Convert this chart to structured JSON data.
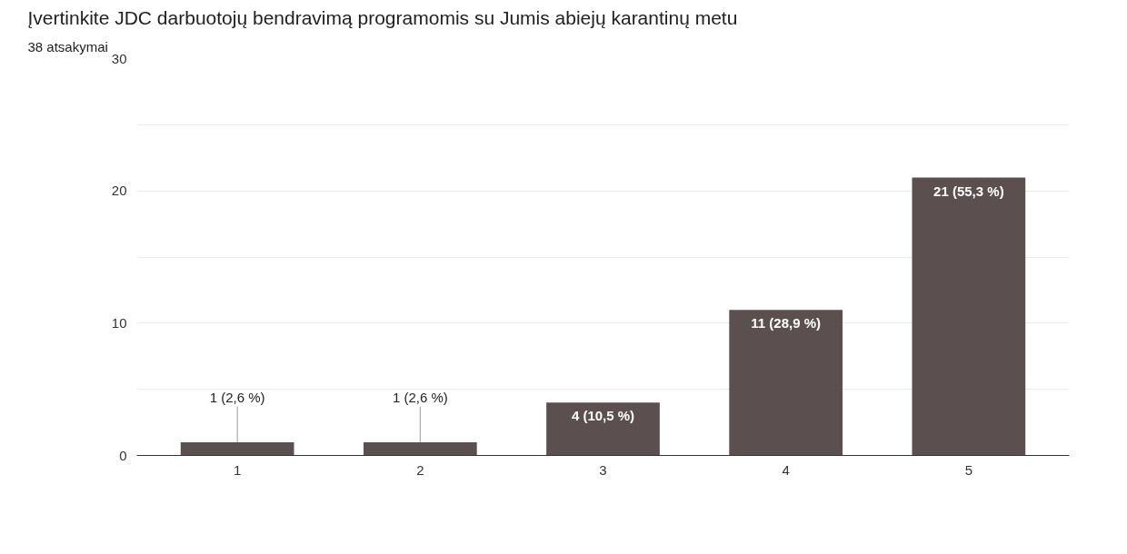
{
  "chart_data": {
    "type": "bar",
    "title": "Įvertinkite JDC darbuotojų bendravimą programomis su Jumis abiejų karantinų metu",
    "subtitle": "38 atsakymai",
    "categories": [
      "1",
      "2",
      "3",
      "4",
      "5"
    ],
    "values": [
      1,
      1,
      4,
      11,
      21
    ],
    "value_labels": [
      "1 (2,6 %)",
      "1 (2,6 %)",
      "4 (10,5 %)",
      "11 (28,9 %)",
      "21 (55,3 %)"
    ],
    "color": "#5b4f4f",
    "ylim": [
      0,
      30
    ],
    "yticks": [
      0,
      {
        "value": 5,
        "label": null
      },
      10,
      {
        "value": 15,
        "label": null
      },
      20,
      {
        "value": 25,
        "label": null
      },
      30
    ],
    "grid": "y"
  }
}
